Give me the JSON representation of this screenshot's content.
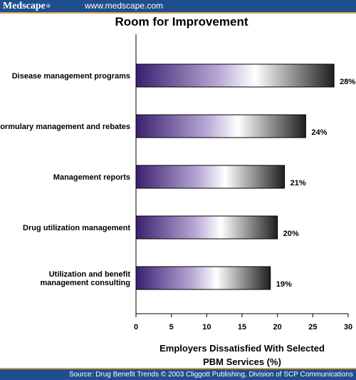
{
  "header": {
    "logo": "Medscape",
    "logo_mark": "®",
    "site": "www.medscape.com"
  },
  "chart_data": {
    "type": "bar",
    "orientation": "horizontal",
    "title": "Room for Improvement",
    "categories": [
      [
        "Disease management programs"
      ],
      [
        "Formulary management and rebates"
      ],
      [
        "Management reports"
      ],
      [
        "Drug utilization management"
      ],
      [
        "Utilization and benefit",
        "management consulting"
      ]
    ],
    "values": [
      28,
      24,
      21,
      20,
      19
    ],
    "value_labels": [
      "28%",
      "24%",
      "21%",
      "20%",
      "19%"
    ],
    "xlabel": [
      "Employers Dissatisfied With Selected",
      "PBM Services (%)"
    ],
    "xlim": [
      0,
      30
    ],
    "xticks": [
      0,
      5,
      10,
      15,
      20,
      25,
      30
    ],
    "grid": false,
    "bar_gradient": [
      "#3a1f70",
      "#b8a9d6",
      "#ffffff",
      "#1e1e1e"
    ]
  },
  "footer": {
    "source": "Source: Drug Benefit Trends © 2003 Cliggott Publishing, Division of SCP Communications"
  }
}
